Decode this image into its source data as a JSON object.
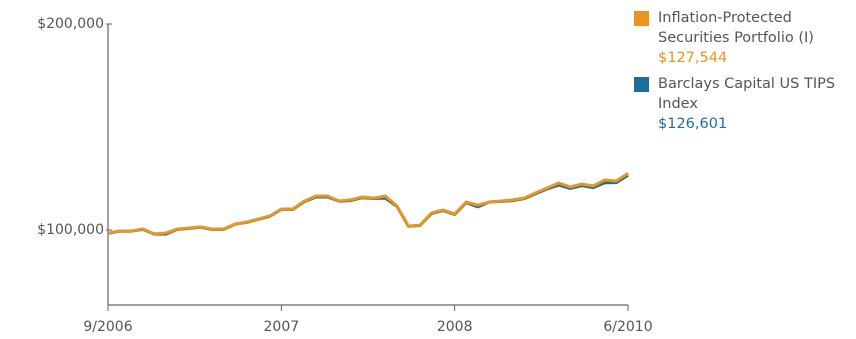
{
  "chart_data": {
    "type": "line",
    "categories": [
      "9/2006",
      null,
      null,
      null,
      null,
      null,
      null,
      null,
      null,
      null,
      null,
      null,
      null,
      null,
      null,
      "2007",
      null,
      null,
      null,
      null,
      null,
      null,
      null,
      null,
      null,
      null,
      null,
      null,
      null,
      null,
      "2008",
      null,
      null,
      null,
      null,
      null,
      null,
      null,
      null,
      null,
      null,
      null,
      null,
      null,
      null,
      "6/2010"
    ],
    "series": [
      {
        "name": "Barclays Capital US TIPS Index",
        "color": "#1f6e99",
        "values": [
          98400,
          99400,
          99400,
          100300,
          98000,
          98000,
          100300,
          100800,
          101300,
          100300,
          100300,
          102800,
          103700,
          105200,
          106600,
          110000,
          110000,
          113800,
          116000,
          116000,
          114000,
          114300,
          115700,
          115300,
          115500,
          111500,
          101800,
          102200,
          108000,
          109400,
          107600,
          113300,
          111200,
          113600,
          113900,
          114300,
          115200,
          117600,
          119900,
          121800,
          120200,
          121500,
          120600,
          122900,
          123000,
          126601
        ],
        "value_labels": [
          null,
          null,
          null,
          null,
          null,
          null,
          null,
          null,
          null,
          null,
          null,
          null,
          null,
          null,
          null,
          null,
          null,
          null,
          null,
          null,
          null,
          null,
          null,
          null,
          null,
          null,
          null,
          null,
          null,
          null,
          null,
          null,
          null,
          null,
          null,
          null,
          null,
          null,
          null,
          null,
          null,
          null,
          null,
          null,
          null,
          "$126,601"
        ]
      },
      {
        "name": "Inflation-Protected Securities Portfolio (I)",
        "color": "#e8961e",
        "values": [
          98500,
          99500,
          99500,
          100500,
          98100,
          98500,
          100500,
          101000,
          101500,
          100500,
          100500,
          102900,
          103900,
          105300,
          106800,
          110200,
          110200,
          114100,
          116500,
          116500,
          114100,
          114600,
          116000,
          115500,
          116500,
          111700,
          101900,
          102400,
          108300,
          109700,
          107800,
          113600,
          112100,
          113600,
          114100,
          114600,
          115500,
          118000,
          120400,
          122800,
          120900,
          122300,
          121400,
          124300,
          123800,
          127544
        ],
        "value_labels": [
          null,
          null,
          null,
          null,
          null,
          null,
          null,
          null,
          null,
          null,
          null,
          null,
          null,
          null,
          null,
          null,
          null,
          null,
          null,
          null,
          null,
          null,
          null,
          null,
          null,
          null,
          null,
          null,
          null,
          null,
          null,
          null,
          null,
          null,
          null,
          null,
          null,
          null,
          null,
          null,
          null,
          null,
          null,
          null,
          null,
          "$127,544"
        ]
      }
    ],
    "legend_order": [
      1,
      0
    ],
    "ylim": [
      63600,
      200000
    ],
    "yticks": [
      {
        "value": 100000,
        "label": "$100,000"
      },
      {
        "value": 200000,
        "label": "$200,000"
      }
    ],
    "grid": false
  }
}
